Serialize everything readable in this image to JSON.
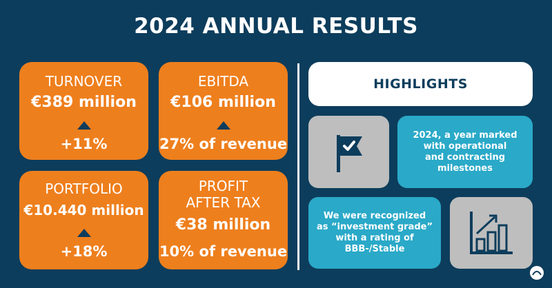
{
  "title": "2024 ANNUAL RESULTS",
  "cards": {
    "turnover": {
      "label": "TURNOVER",
      "value": "€389 million",
      "change": "+11%"
    },
    "ebitda": {
      "label": "EBITDA",
      "value": "€106 million",
      "change": "27% of revenue"
    },
    "portfolio": {
      "label": "PORTFOLIO",
      "value": "€10.440 million",
      "change": "+18%"
    },
    "profit": {
      "label_line1": "PROFIT",
      "label_line2": "AFTER TAX",
      "value": "€38 million",
      "change": "10% of revenue"
    }
  },
  "highlights": {
    "heading": "HIGHLIGHTS",
    "item1": {
      "line1": "2024, a year marked",
      "line2": "with operational",
      "line3": "and contracting",
      "line4": "milestones",
      "icon": "flag-check-icon"
    },
    "item2": {
      "line1": "We were recognized",
      "line2": "as “investment grade”",
      "line3": "with a rating of",
      "line4": "BBB-/Stable",
      "icon": "bar-chart-up-icon"
    }
  },
  "colors": {
    "background": "#0d3d5c",
    "orange": "#ee7f1d",
    "cyan": "#2aa9c8",
    "grey": "#bebebe"
  }
}
